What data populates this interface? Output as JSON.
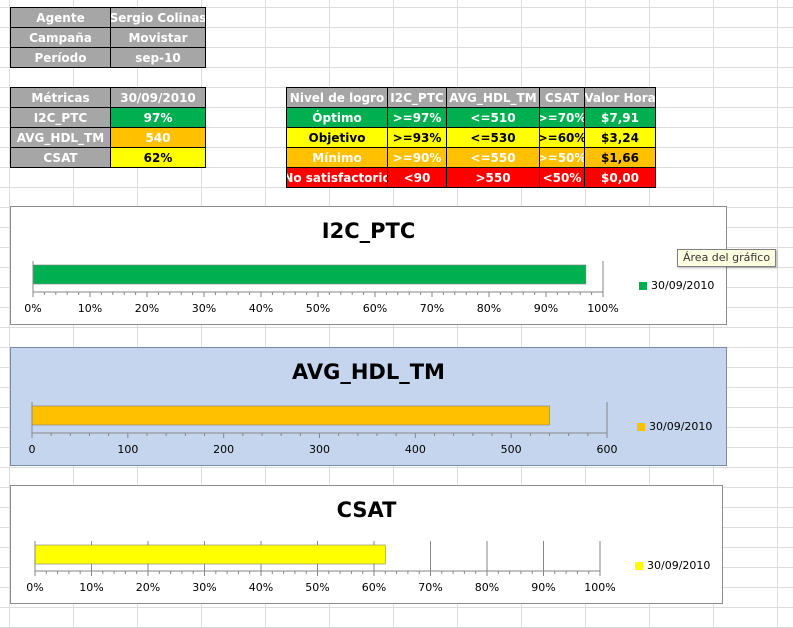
{
  "info": {
    "rows": [
      {
        "label": "Agente",
        "value": "Sergio Colinas"
      },
      {
        "label": "Campaña",
        "value": "Movistar"
      },
      {
        "label": "Período",
        "value": "sep-10"
      }
    ]
  },
  "metrics": {
    "header": {
      "label": "Métricas",
      "date": "30/09/2010"
    },
    "rows": [
      {
        "label": "I2C_PTC",
        "value": "97%"
      },
      {
        "label": "AVG_HDL_TM",
        "value": "540"
      },
      {
        "label": "CSAT",
        "value": "62%"
      }
    ]
  },
  "levels": {
    "headers": [
      "Nivel de logro",
      "I2C_PTC",
      "AVG_HDL_TM",
      "CSAT",
      "Valor Hora"
    ],
    "rows": [
      [
        "Óptimo",
        ">=97%",
        "<=510",
        ">=70%",
        "$7,91"
      ],
      [
        "Objetivo",
        ">=93%",
        "<=530",
        ">=60%",
        "$3,24"
      ],
      [
        "Mínimo",
        ">=90%",
        "<=550",
        ">=50%",
        "$1,66"
      ],
      [
        "No satisfactorio",
        "<90",
        ">550",
        "<50%",
        "$0,00"
      ]
    ],
    "colors": [
      "#00b050",
      "#ffff00",
      "#ffc000",
      "#ff0000"
    ]
  },
  "tooltip": "Área del gráfico",
  "chart_data": [
    {
      "type": "bar",
      "title": "I2C_PTC",
      "categories": [
        "30/09/2010"
      ],
      "series": [
        {
          "name": "30/09/2010",
          "values": [
            0.97
          ]
        }
      ],
      "xlim": [
        0,
        1
      ],
      "ticks": [
        "0%",
        "10%",
        "20%",
        "30%",
        "40%",
        "50%",
        "60%",
        "70%",
        "80%",
        "90%",
        "100%"
      ],
      "color": "#00b050",
      "grid": false
    },
    {
      "type": "bar",
      "title": "AVG_HDL_TM",
      "categories": [
        "30/09/2010"
      ],
      "series": [
        {
          "name": "30/09/2010",
          "values": [
            540
          ]
        }
      ],
      "xlim": [
        0,
        600
      ],
      "ticks": [
        "0",
        "100",
        "200",
        "300",
        "400",
        "500",
        "600"
      ],
      "color": "#ffc000",
      "grid": false,
      "selected": true
    },
    {
      "type": "bar",
      "title": "CSAT",
      "categories": [
        "30/09/2010"
      ],
      "series": [
        {
          "name": "30/09/2010",
          "values": [
            0.62
          ]
        }
      ],
      "xlim": [
        0,
        1
      ],
      "ticks": [
        "0%",
        "10%",
        "20%",
        "30%",
        "40%",
        "50%",
        "60%",
        "70%",
        "80%",
        "90%",
        "100%"
      ],
      "color": "#ffff00",
      "grid": true
    }
  ]
}
